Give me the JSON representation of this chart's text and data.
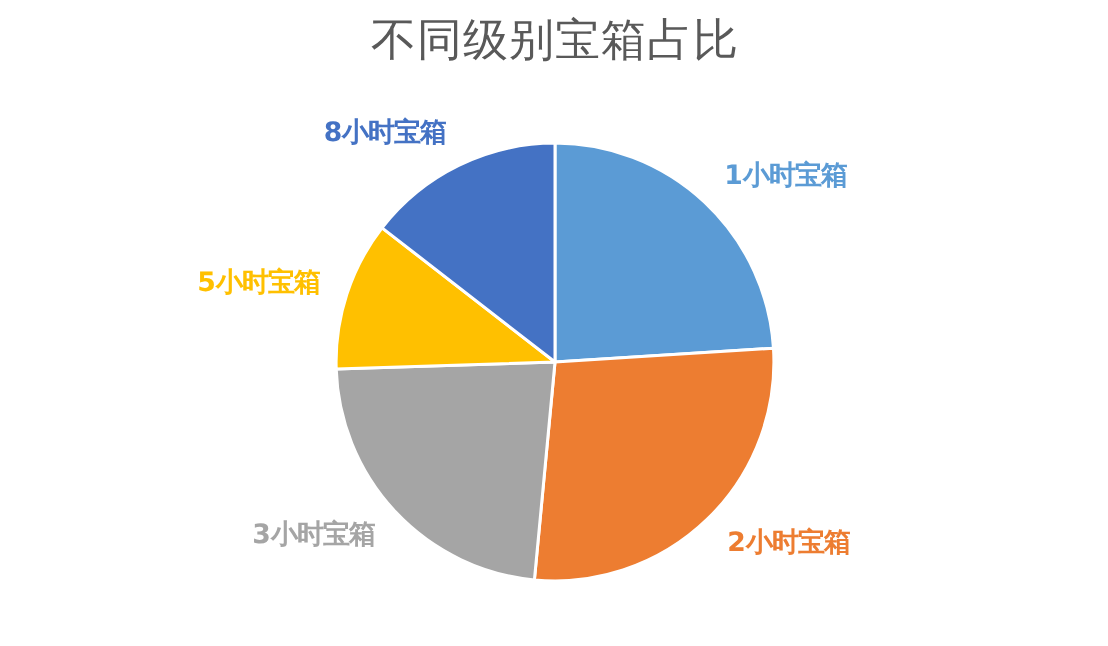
{
  "chart_data": {
    "type": "pie",
    "title": "不同级别宝箱占比",
    "categories": [
      "1小时宝箱",
      "2小时宝箱",
      "3小时宝箱",
      "5小时宝箱",
      "8小时宝箱"
    ],
    "values": [
      24,
      27.5,
      23,
      11,
      14.5
    ],
    "colors": [
      "#5b9bd5",
      "#ed7d31",
      "#a5a5a5",
      "#ffc000",
      "#4472c4"
    ]
  }
}
